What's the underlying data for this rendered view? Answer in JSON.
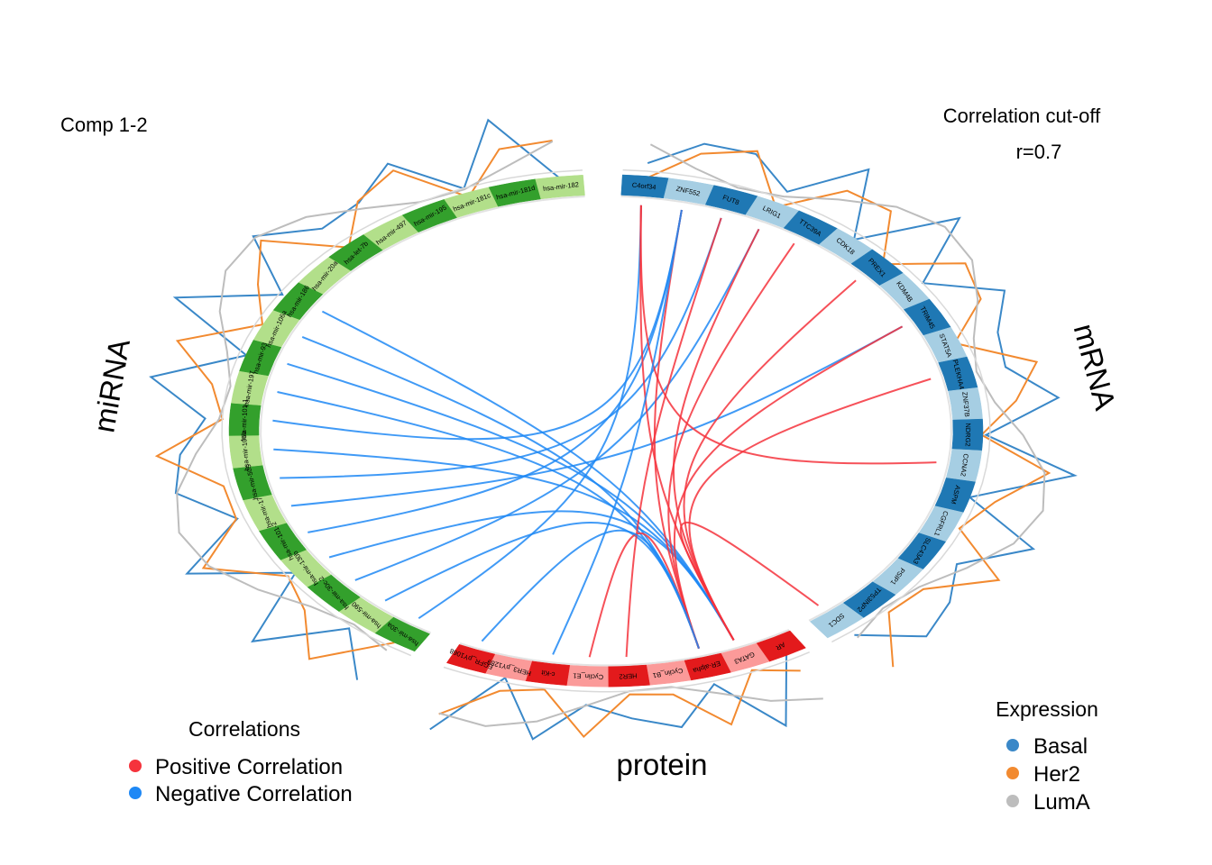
{
  "header": {
    "comp_label": "Comp 1-2",
    "cutoff_title": "Correlation cut-off",
    "cutoff_value": "r=0.7"
  },
  "chart_data": {
    "type": "circos",
    "blocks": [
      {
        "name": "miRNA",
        "title": "miRNA",
        "colors": [
          "#33a02c",
          "#b2df8a"
        ],
        "features": [
          "hsa-mir-30a",
          "hsa-mir-590",
          "hsa-mir-30c-2",
          "hsa-mir-130b",
          "hsa-mir-101-2",
          "hsa-mir-17",
          "hsa-mir-505",
          "hsa-mir-106b",
          "hsa-mir-101-1",
          "hsa-mir-197",
          "hsa-mir-93",
          "hsa-mir-106a",
          "hsa-mir-186",
          "hsa-mir-20a",
          "hsa-let-7b",
          "hsa-mir-497",
          "hsa-mir-195",
          "hsa-mir-181c",
          "hsa-mir-181d",
          "hsa-mir-182"
        ]
      },
      {
        "name": "mRNA",
        "title": "mRNA",
        "colors": [
          "#1f78b4",
          "#a6cee3"
        ],
        "features": [
          "C4orf34",
          "ZNF552",
          "FUT8",
          "LRIG1",
          "TTC39A",
          "CDK18",
          "PREX1",
          "KDM4B",
          "TRIM45",
          "STAT5A",
          "PLEKHA4",
          "ZNF37B",
          "NDRG2",
          "CCNA2",
          "ASPM",
          "CGFRL1",
          "SLC43A3",
          "PSIP1",
          "TP53INP2",
          "SDC1"
        ]
      },
      {
        "name": "protein",
        "title": "protein",
        "colors": [
          "#e31a1c",
          "#fb9a99"
        ],
        "features": [
          "AR",
          "GATA3",
          "ER-alpha",
          "Cyclin_B1",
          "HER2",
          "Cyclin_E1",
          "c-Kit",
          "HER3_pY1289",
          "EGFR_pY1068"
        ]
      }
    ],
    "correlation_cutoff": 0.7,
    "links": [
      {
        "from": "hsa-mir-186",
        "to": "GATA3",
        "sign": "negative"
      },
      {
        "from": "hsa-mir-106a",
        "to": "ER-alpha",
        "sign": "negative"
      },
      {
        "from": "hsa-mir-93",
        "to": "GATA3",
        "sign": "negative"
      },
      {
        "from": "hsa-mir-197",
        "to": "ER-alpha",
        "sign": "negative"
      },
      {
        "from": "hsa-mir-101-1",
        "to": "ZNF552",
        "sign": "negative"
      },
      {
        "from": "hsa-mir-106b",
        "to": "GATA3",
        "sign": "negative"
      },
      {
        "from": "hsa-mir-505",
        "to": "FUT8",
        "sign": "negative"
      },
      {
        "from": "hsa-mir-17",
        "to": "TRIM45",
        "sign": "negative"
      },
      {
        "from": "hsa-mir-101-2",
        "to": "ZNF552",
        "sign": "negative"
      },
      {
        "from": "hsa-mir-30c-2",
        "to": "LRIG1",
        "sign": "negative"
      },
      {
        "from": "hsa-mir-30a",
        "to": "C4orf34",
        "sign": "negative"
      },
      {
        "from": "hsa-mir-130b",
        "to": "GATA3",
        "sign": "negative"
      },
      {
        "from": "hsa-mir-590",
        "to": "ER-alpha",
        "sign": "negative"
      },
      {
        "from": "C4orf34",
        "to": "GATA3",
        "sign": "positive"
      },
      {
        "from": "ZNF552",
        "to": "ER-alpha",
        "sign": "positive"
      },
      {
        "from": "FUT8",
        "to": "HER2",
        "sign": "positive"
      },
      {
        "from": "LRIG1",
        "to": "GATA3",
        "sign": "positive"
      },
      {
        "from": "TTC39A",
        "to": "ER-alpha",
        "sign": "positive"
      },
      {
        "from": "PREX1",
        "to": "GATA3",
        "sign": "positive"
      },
      {
        "from": "TRIM45",
        "to": "ER-alpha",
        "sign": "positive"
      },
      {
        "from": "PLEKHA4",
        "to": "GATA3",
        "sign": "positive"
      },
      {
        "from": "CCNA2",
        "to": "C4orf34",
        "sign": "positive"
      },
      {
        "from": "SDC1",
        "to": "GATA3",
        "sign": "positive"
      },
      {
        "from": "Cyclin_E1",
        "to": "ER-alpha",
        "sign": "positive"
      },
      {
        "from": "c-Kit",
        "to": "ZNF552",
        "sign": "negative"
      },
      {
        "from": "EGFR_pY1068",
        "to": "ER-alpha",
        "sign": "negative"
      }
    ],
    "expression_groups": [
      {
        "name": "Basal",
        "color": "#3a88c8"
      },
      {
        "name": "Her2",
        "color": "#f28a30"
      },
      {
        "name": "LumA",
        "color": "#bdbdbd"
      }
    ]
  },
  "legend_correlations": {
    "title": "Correlations",
    "items": [
      {
        "label": "Positive Correlation",
        "color": "#f5333c"
      },
      {
        "label": "Negative Correlation",
        "color": "#1e88f5"
      }
    ]
  },
  "legend_expression": {
    "title": "Expression",
    "items": [
      {
        "label": "Basal",
        "color": "#3a88c8"
      },
      {
        "label": "Her2",
        "color": "#f28a30"
      },
      {
        "label": "LumA",
        "color": "#bdbdbd"
      }
    ]
  }
}
